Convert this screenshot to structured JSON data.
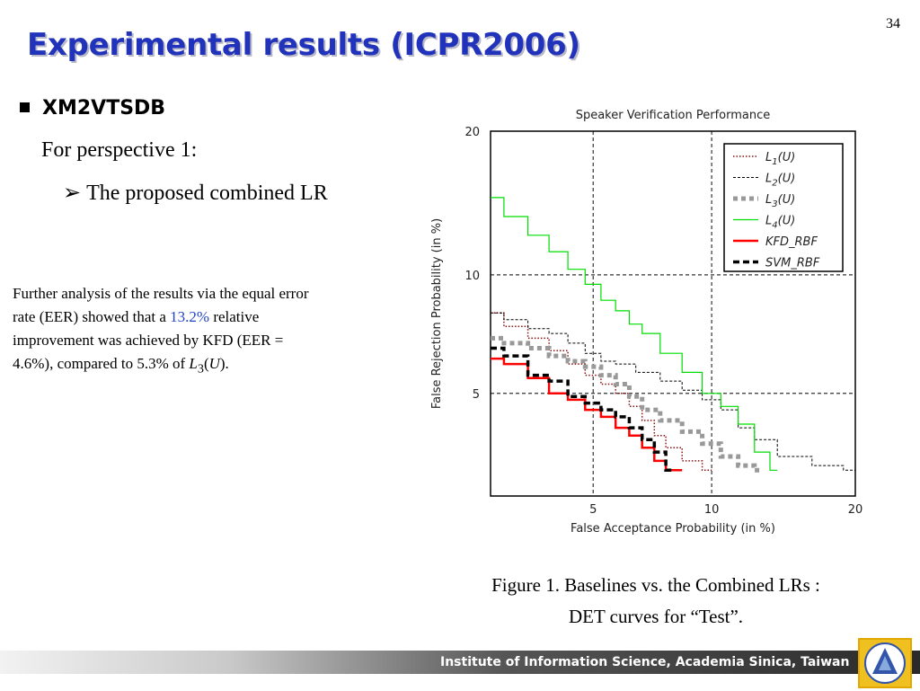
{
  "slide": {
    "number": "34",
    "title": "Experimental results (ICPR2006)",
    "bullet1": "XM2VTSDB",
    "perspective": "For perspective 1:",
    "arrow_glyph": "➢",
    "bullet2": "The proposed combined LR",
    "analysis": {
      "part1": "Further analysis of the results via the equal error rate (EER) showed that a",
      "highlight": "13.2%",
      "part2": "relative improvement was achieved by KFD (EER = 4.6%), compared to 5.3% of",
      "l_letter": "L",
      "l_sub": "3",
      "open_paren": "(",
      "u_letter": "U",
      "close": ")."
    },
    "caption_line1": "Figure 1. Baselines vs. the Combined LRs :",
    "caption_line2": "DET curves for “Test”.",
    "footer": "Institute of Information Science, Academia Sinica, Taiwan"
  },
  "chart_data": {
    "type": "line",
    "title": "Speaker Verification Performance",
    "xlabel": "False Acceptance Probability (in %)",
    "ylabel": "False Rejection Probability (in %)",
    "xticks": [
      "5",
      "10",
      "20"
    ],
    "yticks": [
      "5",
      "10",
      "20"
    ],
    "grid": true,
    "legend_position": "top-right",
    "series": [
      {
        "name": "L1(U)",
        "name_main": "L",
        "name_sub": "1",
        "name_suffix": "(U)",
        "color": "#8b1010",
        "style": "dotted",
        "points": [
          [
            2.5,
            8.1
          ],
          [
            3,
            7.5
          ],
          [
            3.5,
            7.0
          ],
          [
            4,
            6.5
          ],
          [
            4.5,
            6.0
          ],
          [
            5,
            5.6
          ],
          [
            5.5,
            5.3
          ],
          [
            6,
            5.0
          ],
          [
            6.5,
            4.6
          ],
          [
            7,
            4.2
          ],
          [
            7.5,
            3.8
          ],
          [
            8,
            3.5
          ],
          [
            9,
            3.2
          ],
          [
            10,
            3.0
          ]
        ]
      },
      {
        "name": "L2(U)",
        "name_main": "L",
        "name_sub": "2",
        "name_suffix": "(U)",
        "color": "#000000",
        "style": "dashed-thin",
        "points": [
          [
            2.5,
            8.1
          ],
          [
            3,
            7.8
          ],
          [
            3.5,
            7.4
          ],
          [
            4,
            7.2
          ],
          [
            4.5,
            6.8
          ],
          [
            5,
            6.4
          ],
          [
            5.5,
            6.1
          ],
          [
            6,
            6.0
          ],
          [
            7,
            5.7
          ],
          [
            8,
            5.4
          ],
          [
            9,
            5.1
          ],
          [
            10,
            4.8
          ],
          [
            11,
            4.5
          ],
          [
            12,
            4.0
          ],
          [
            13,
            3.7
          ],
          [
            15,
            3.3
          ],
          [
            18,
            3.1
          ],
          [
            20,
            3.0
          ]
        ]
      },
      {
        "name": "L3(U)",
        "name_main": "L",
        "name_sub": "3",
        "name_suffix": "(U)",
        "color": "#999999",
        "style": "dotted-thick",
        "points": [
          [
            2.5,
            7.0
          ],
          [
            3,
            6.8
          ],
          [
            3.5,
            6.6
          ],
          [
            4,
            6.3
          ],
          [
            4.5,
            6.1
          ],
          [
            5,
            5.9
          ],
          [
            5.5,
            5.6
          ],
          [
            6,
            5.3
          ],
          [
            6.5,
            4.9
          ],
          [
            7,
            4.5
          ],
          [
            8,
            4.2
          ],
          [
            9,
            3.9
          ],
          [
            10,
            3.6
          ],
          [
            11,
            3.3
          ],
          [
            12,
            3.1
          ],
          [
            13,
            3.0
          ]
        ]
      },
      {
        "name": "L4(U)",
        "name_main": "L",
        "name_sub": "4",
        "name_suffix": "(U)",
        "color": "#00dd00",
        "style": "solid-thin",
        "points": [
          [
            2.5,
            14.8
          ],
          [
            3,
            13.5
          ],
          [
            3.5,
            12.3
          ],
          [
            4,
            11.3
          ],
          [
            4.5,
            10.3
          ],
          [
            5,
            9.5
          ],
          [
            5.5,
            8.7
          ],
          [
            6,
            8.2
          ],
          [
            6.5,
            7.6
          ],
          [
            7,
            7.2
          ],
          [
            8,
            6.4
          ],
          [
            9,
            5.7
          ],
          [
            10,
            5.0
          ],
          [
            11,
            4.6
          ],
          [
            12,
            4.1
          ],
          [
            13,
            3.4
          ],
          [
            14,
            3.0
          ]
        ]
      },
      {
        "name": "KFD_RBF",
        "color": "#ff0000",
        "style": "solid-thick",
        "points": [
          [
            2.5,
            6.2
          ],
          [
            3,
            6.0
          ],
          [
            3.5,
            5.5
          ],
          [
            4,
            5.0
          ],
          [
            4.5,
            4.8
          ],
          [
            5,
            4.5
          ],
          [
            5.5,
            4.3
          ],
          [
            6,
            4.0
          ],
          [
            6.5,
            3.8
          ],
          [
            7,
            3.5
          ],
          [
            7.5,
            3.2
          ],
          [
            8,
            3.0
          ],
          [
            8.5,
            3.0
          ]
        ]
      },
      {
        "name": "SVM_RBF",
        "color": "#000000",
        "style": "dashed-thick",
        "points": [
          [
            2.5,
            6.6
          ],
          [
            3,
            6.3
          ],
          [
            3.5,
            5.6
          ],
          [
            4,
            5.4
          ],
          [
            4.5,
            4.9
          ],
          [
            5,
            4.7
          ],
          [
            5.5,
            4.5
          ],
          [
            6,
            4.3
          ],
          [
            6.5,
            4.0
          ],
          [
            7,
            3.7
          ],
          [
            7.5,
            3.4
          ],
          [
            8,
            3.0
          ]
        ]
      }
    ]
  }
}
